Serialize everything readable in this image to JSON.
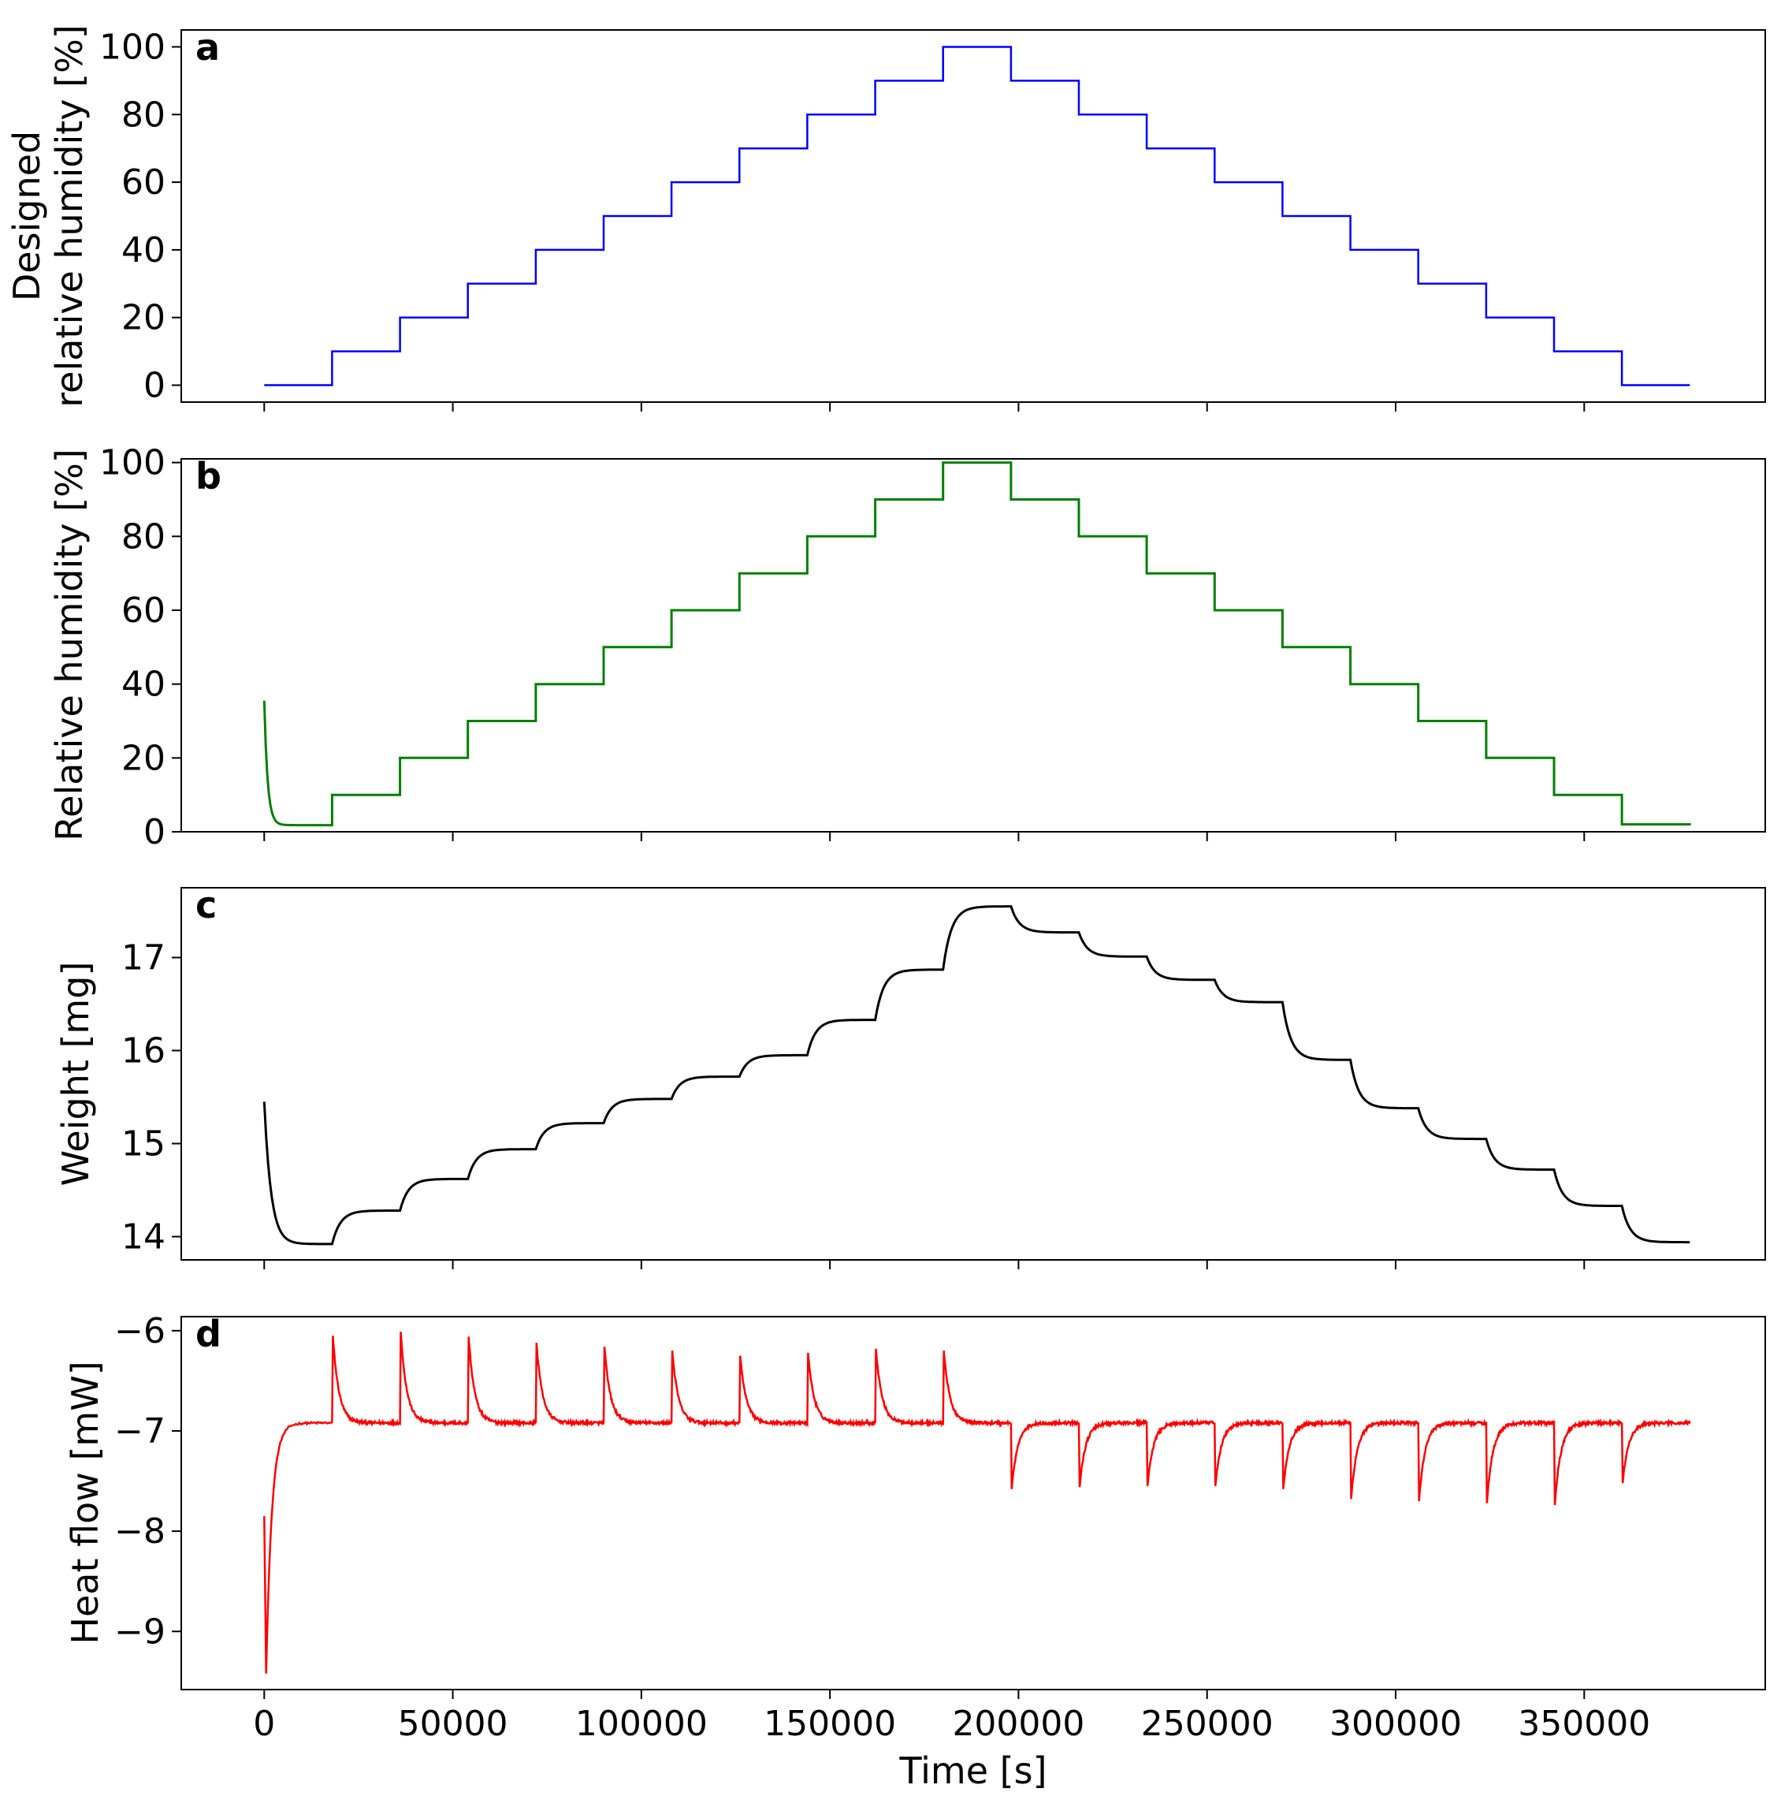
{
  "chart_data": [
    {
      "panel_label": "a",
      "type": "line",
      "style": "step",
      "ylabel": [
        "Designed",
        "relative humidity [%]"
      ],
      "xlim": [
        -22000,
        398000
      ],
      "ylim": [
        -5,
        105
      ],
      "yticks": [
        0,
        20,
        40,
        60,
        80,
        100
      ],
      "color": "#0000ff",
      "x": [
        0,
        18000,
        36000,
        54000,
        72000,
        90000,
        108000,
        126000,
        144000,
        162000,
        180000,
        198000,
        216000,
        234000,
        252000,
        270000,
        288000,
        306000,
        324000,
        342000,
        360000,
        378000
      ],
      "y": [
        0,
        10,
        20,
        30,
        40,
        50,
        60,
        70,
        80,
        90,
        100,
        90,
        80,
        70,
        60,
        50,
        40,
        30,
        20,
        10,
        0,
        0
      ]
    },
    {
      "panel_label": "b",
      "type": "line",
      "style": "step",
      "ylabel": [
        "Relative humidity [%]"
      ],
      "xlim": [
        -22000,
        398000
      ],
      "ylim": [
        0,
        101
      ],
      "yticks": [
        0,
        20,
        40,
        60,
        80,
        100
      ],
      "color": "#008000",
      "initial_point": [
        0,
        35.5
      ],
      "x": [
        0,
        18000,
        36000,
        54000,
        72000,
        90000,
        108000,
        126000,
        144000,
        162000,
        180000,
        198000,
        216000,
        234000,
        252000,
        270000,
        288000,
        306000,
        324000,
        342000,
        360000,
        378000
      ],
      "y": [
        1.8,
        10,
        20,
        30,
        40,
        50,
        60,
        70,
        80,
        90,
        100,
        90,
        80,
        70,
        60,
        50,
        40,
        30,
        20,
        10,
        2,
        1.8
      ]
    },
    {
      "panel_label": "c",
      "type": "line",
      "ylabel": [
        "Weight [mg]"
      ],
      "xlim": [
        -22000,
        398000
      ],
      "ylim": [
        13.75,
        17.75
      ],
      "yticks": [
        14,
        15,
        16,
        17
      ],
      "color": "#000000",
      "initial_point": [
        0,
        15.45
      ],
      "x": [
        0,
        18000,
        36000,
        54000,
        72000,
        90000,
        108000,
        126000,
        144000,
        162000,
        180000,
        198000,
        216000,
        234000,
        252000,
        270000,
        288000,
        306000,
        324000,
        342000,
        360000,
        378000
      ],
      "y": [
        13.92,
        14.28,
        14.62,
        14.94,
        15.22,
        15.48,
        15.72,
        15.95,
        16.33,
        16.87,
        17.55,
        17.27,
        17.01,
        16.76,
        16.52,
        15.9,
        15.38,
        15.05,
        14.72,
        14.33,
        13.94,
        13.94
      ]
    },
    {
      "panel_label": "d",
      "type": "line",
      "ylabel": [
        "Heat flow [mW]"
      ],
      "xlabel": "Time [s]",
      "xlim": [
        -22000,
        398000
      ],
      "ylim": [
        -9.58,
        -5.86
      ],
      "yticks": [
        -9,
        -8,
        -7,
        -6
      ],
      "ytick_labels": [
        "−9",
        "−8",
        "−7",
        "−6"
      ],
      "xticks": [
        0,
        50000,
        100000,
        150000,
        200000,
        250000,
        300000,
        350000
      ],
      "color": "#ff0000",
      "baseline": -6.92,
      "initial_spike": [
        [
          0,
          -7.85
        ],
        [
          500,
          -9.42
        ]
      ],
      "step_times": [
        18000,
        36000,
        54000,
        72000,
        90000,
        108000,
        126000,
        144000,
        162000,
        180000,
        198000,
        216000,
        234000,
        252000,
        270000,
        288000,
        306000,
        324000,
        342000,
        360000
      ],
      "spike_peaks": [
        -6.05,
        -6.01,
        -6.06,
        -6.12,
        -6.16,
        -6.2,
        -6.25,
        -6.22,
        -6.18,
        -6.2,
        -7.58,
        -7.56,
        -7.55,
        -7.55,
        -7.58,
        -7.68,
        -7.7,
        -7.72,
        -7.74,
        -7.52
      ],
      "x_end": 378000
    }
  ]
}
